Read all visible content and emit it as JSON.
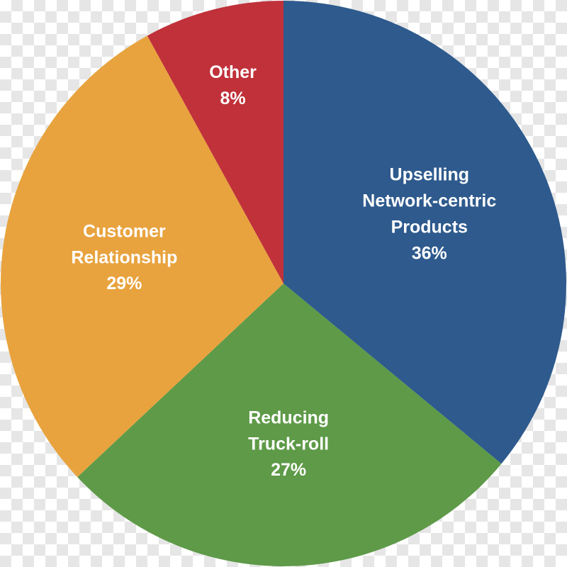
{
  "chart_data": {
    "type": "pie",
    "categories": [
      "Upselling Network-centric Products",
      "Reducing Truck-roll",
      "Customer Relationship",
      "Other"
    ],
    "values": [
      36,
      27,
      29,
      8
    ],
    "value_labels": [
      "36%",
      "27%",
      "29%",
      "8%"
    ],
    "colors": [
      "#2e5a8d",
      "#5e9a48",
      "#e8a33e",
      "#c0313a"
    ]
  }
}
